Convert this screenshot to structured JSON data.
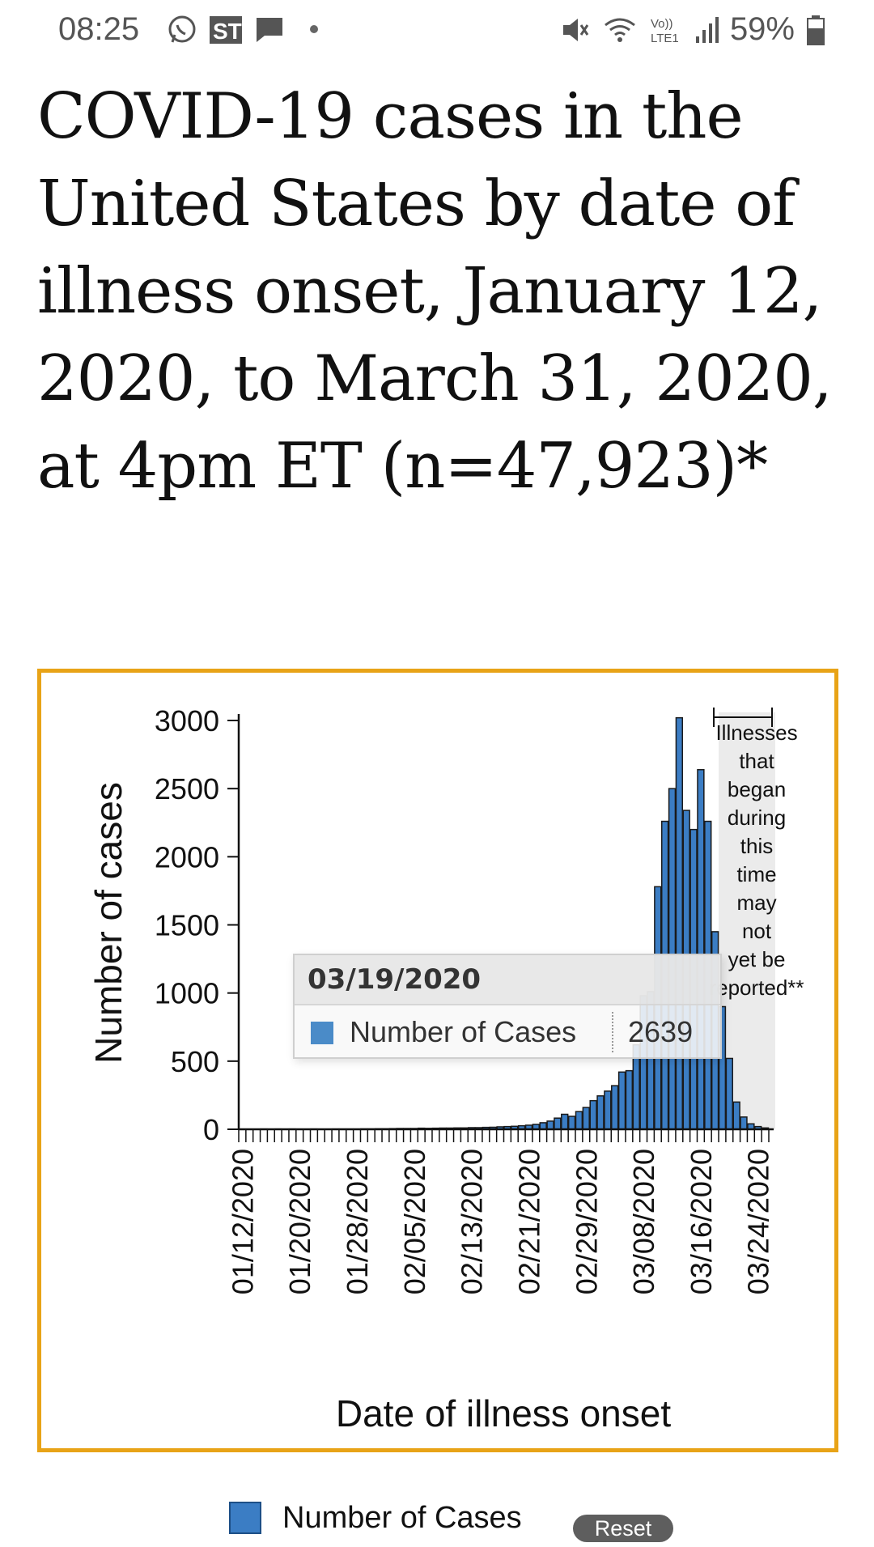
{
  "status_bar": {
    "time": "08:25",
    "battery": "59%",
    "icons": [
      "whatsapp-icon",
      "app-icon",
      "message-icon",
      "mute-icon",
      "wifi-icon",
      "volte-icon",
      "signal-icon",
      "battery-icon"
    ]
  },
  "page": {
    "title": "COVID-19 cases in the United States by date of illness onset, January 12, 2020, to March 31, 2020, at 4pm ET (n=47,923)*"
  },
  "colors": {
    "frame": "#e8a317",
    "bar": "#3b7dc4",
    "bar_stroke": "#1a1a1a",
    "shade": "#e6e6e6"
  },
  "chart_data": {
    "type": "bar",
    "title": "",
    "xlabel": "Date of illness onset",
    "ylabel": "Number of cases",
    "ylim": [
      0,
      3000
    ],
    "yticks": [
      0,
      500,
      1000,
      1500,
      2000,
      2500,
      3000
    ],
    "xtick_labels": [
      "01/12/2020",
      "01/20/2020",
      "01/28/2020",
      "02/05/2020",
      "02/13/2020",
      "02/21/2020",
      "02/29/2020",
      "03/08/2020",
      "03/16/2020",
      "03/24/2020"
    ],
    "x_start": "01/12/2020",
    "x_end": "03/31/2020",
    "values": [
      1,
      1,
      1,
      2,
      1,
      2,
      1,
      2,
      1,
      1,
      2,
      1,
      1,
      2,
      2,
      2,
      2,
      3,
      3,
      4,
      4,
      5,
      6,
      6,
      6,
      8,
      7,
      8,
      9,
      9,
      10,
      10,
      12,
      12,
      14,
      15,
      18,
      20,
      22,
      26,
      30,
      36,
      48,
      60,
      82,
      110,
      95,
      130,
      160,
      210,
      245,
      280,
      320,
      420,
      430,
      620,
      980,
      1010,
      1780,
      2260,
      2500,
      3020,
      2340,
      2200,
      2639,
      2260,
      1450,
      900,
      520,
      200,
      90,
      40,
      20,
      10
    ],
    "series": [
      {
        "name": "Number of Cases"
      }
    ],
    "shaded_region": {
      "from": "03/19/2020",
      "to": "03/31/2020",
      "label": "Illnesses that began during this time may not yet be reported**"
    },
    "legend": "bottom",
    "grid": false
  },
  "tooltip": {
    "date": "03/19/2020",
    "series_label": "Number of Cases",
    "value": "2639"
  },
  "legend": {
    "label": "Number of Cases"
  },
  "reset_label": "Reset"
}
